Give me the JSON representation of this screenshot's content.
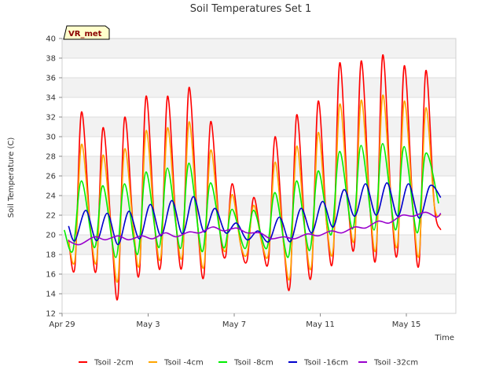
{
  "chart_data": {
    "type": "line",
    "title": "Soil Temperatures Set 1",
    "xlabel": "Time",
    "ylabel": "Soil Temperature (C)",
    "badge": "VR_met",
    "ylim": [
      12,
      40
    ],
    "yticks": [
      12,
      14,
      16,
      18,
      20,
      22,
      24,
      26,
      28,
      30,
      32,
      34,
      36,
      38,
      40
    ],
    "xlim": [
      0,
      18.3
    ],
    "xticks": [
      {
        "day": 0,
        "label": "Apr 29"
      },
      {
        "day": 4,
        "label": "May 3"
      },
      {
        "day": 8,
        "label": "May 7"
      },
      {
        "day": 12,
        "label": "May 11"
      },
      {
        "day": 16,
        "label": "May 15"
      }
    ],
    "grid": true,
    "legend_position": "bottom",
    "series": [
      {
        "name": "Tsoil -2cm",
        "color": "#ff0000",
        "x": [
          0.3,
          0.6,
          0.9,
          1.3,
          1.6,
          1.9,
          2.3,
          2.6,
          2.9,
          3.3,
          3.6,
          3.9,
          4.3,
          4.6,
          4.9,
          5.3,
          5.6,
          5.9,
          6.3,
          6.6,
          6.9,
          7.3,
          7.6,
          7.9,
          8.3,
          8.6,
          8.9,
          9.3,
          9.6,
          9.9,
          10.3,
          10.6,
          10.9,
          11.3,
          11.6,
          11.9,
          12.3,
          12.6,
          12.9,
          13.3,
          13.6,
          13.9,
          14.3,
          14.6,
          14.9,
          15.3,
          15.6,
          15.9,
          16.3,
          16.6,
          16.9,
          17.3,
          17.6
        ],
        "y": [
          19.5,
          16.8,
          32.5,
          21,
          16.6,
          30.9,
          20,
          13.8,
          31.9,
          21,
          16.3,
          34.1,
          21,
          17.2,
          34.1,
          21,
          17.3,
          35.0,
          21,
          16.0,
          31.5,
          21,
          17.8,
          25.2,
          19,
          17.4,
          23.8,
          19,
          17.5,
          30.0,
          19,
          15.0,
          32.2,
          20,
          16.2,
          33.6,
          21,
          17.9,
          37.5,
          23,
          19.2,
          37.7,
          23,
          18.0,
          38.3,
          23,
          18.5,
          37.2,
          23,
          17.3,
          36.7,
          23,
          20.5
        ]
      },
      {
        "name": "Tsoil -4cm",
        "color": "#ffa500",
        "x": [
          0.3,
          0.6,
          0.9,
          1.3,
          1.6,
          1.9,
          2.3,
          2.6,
          2.9,
          3.3,
          3.6,
          3.9,
          4.3,
          4.6,
          4.9,
          5.3,
          5.6,
          5.9,
          6.3,
          6.6,
          6.9,
          7.3,
          7.6,
          7.9,
          8.3,
          8.6,
          8.9,
          9.3,
          9.6,
          9.9,
          10.3,
          10.6,
          10.9,
          11.3,
          11.6,
          11.9,
          12.3,
          12.6,
          12.9,
          13.3,
          13.6,
          13.9,
          14.3,
          14.6,
          14.9,
          15.3,
          15.6,
          15.9,
          16.3,
          16.6,
          16.9,
          17.3,
          17.6
        ],
        "y": [
          19.3,
          17.5,
          29.2,
          21,
          17.3,
          28.1,
          20,
          15.5,
          28.7,
          21,
          17.1,
          30.6,
          21,
          17.9,
          30.9,
          21,
          18.1,
          31.5,
          21,
          16.9,
          28.6,
          21,
          18.4,
          24.1,
          19,
          18.1,
          23.0,
          19,
          18.2,
          27.4,
          19,
          15.9,
          29.0,
          20,
          17.0,
          30.4,
          21,
          18.6,
          33.3,
          23,
          19.8,
          33.7,
          23,
          18.8,
          34.2,
          23,
          19.2,
          33.6,
          23,
          18.1,
          32.9,
          23,
          22.0
        ]
      },
      {
        "name": "Tsoil -8cm",
        "color": "#00ee00",
        "x": [
          0.1,
          0.5,
          0.9,
          1.5,
          1.9,
          2.5,
          2.9,
          3.5,
          3.9,
          4.5,
          4.9,
          5.5,
          5.9,
          6.5,
          6.9,
          7.5,
          7.9,
          8.5,
          8.9,
          9.5,
          9.9,
          10.5,
          10.9,
          11.5,
          11.9,
          12.5,
          12.9,
          13.5,
          13.9,
          14.5,
          14.9,
          15.5,
          15.9,
          16.5,
          16.9,
          17.5
        ],
        "y": [
          20.5,
          18.4,
          25.5,
          18.7,
          25.0,
          17.7,
          25.2,
          18.0,
          26.4,
          18.7,
          26.8,
          18.6,
          27.3,
          18.3,
          25.3,
          18.7,
          22.6,
          18.6,
          22.5,
          18.6,
          24.3,
          17.7,
          25.5,
          18.4,
          26.5,
          20.0,
          28.5,
          20.6,
          29.1,
          20.5,
          29.3,
          20.5,
          29.0,
          20.2,
          28.3,
          23.2
        ]
      },
      {
        "name": "Tsoil -16cm",
        "color": "#0000cc",
        "x": [
          0.3,
          0.6,
          1.1,
          1.6,
          2.1,
          2.6,
          3.1,
          3.6,
          4.1,
          4.6,
          5.1,
          5.6,
          6.1,
          6.6,
          7.1,
          7.6,
          8.1,
          8.6,
          9.1,
          9.6,
          10.1,
          10.6,
          11.1,
          11.6,
          12.1,
          12.6,
          13.1,
          13.6,
          14.1,
          14.6,
          15.1,
          15.6,
          16.1,
          16.6,
          17.1,
          17.6
        ],
        "y": [
          20.9,
          19.4,
          22.5,
          19.4,
          22.2,
          19.0,
          22.4,
          19.6,
          23.1,
          19.9,
          23.5,
          20.1,
          23.9,
          20.3,
          22.7,
          20.2,
          21.2,
          19.5,
          20.4,
          19.3,
          21.8,
          19.3,
          22.7,
          20.2,
          23.4,
          20.8,
          24.6,
          21.9,
          25.2,
          22.0,
          25.3,
          21.9,
          25.2,
          21.7,
          25.0,
          23.8
        ]
      },
      {
        "name": "Tsoil -32cm",
        "color": "#9900cc",
        "x": [
          0.3,
          0.8,
          1.5,
          2.0,
          2.6,
          3.1,
          3.7,
          4.2,
          4.8,
          5.3,
          5.9,
          6.4,
          7.0,
          7.5,
          8.1,
          8.6,
          9.2,
          9.7,
          10.3,
          10.8,
          11.4,
          11.9,
          12.5,
          13.0,
          13.6,
          14.1,
          14.7,
          15.2,
          15.8,
          16.3,
          16.9,
          17.4,
          17.6
        ],
        "y": [
          19.4,
          19.0,
          19.8,
          19.5,
          19.9,
          19.5,
          19.9,
          19.6,
          20.2,
          19.8,
          20.3,
          20.2,
          20.8,
          20.4,
          20.7,
          20.2,
          20.2,
          19.6,
          19.8,
          19.6,
          20.1,
          19.9,
          20.4,
          20.2,
          20.8,
          20.7,
          21.4,
          21.2,
          22.0,
          21.9,
          22.3,
          21.8,
          22.2
        ]
      }
    ]
  }
}
